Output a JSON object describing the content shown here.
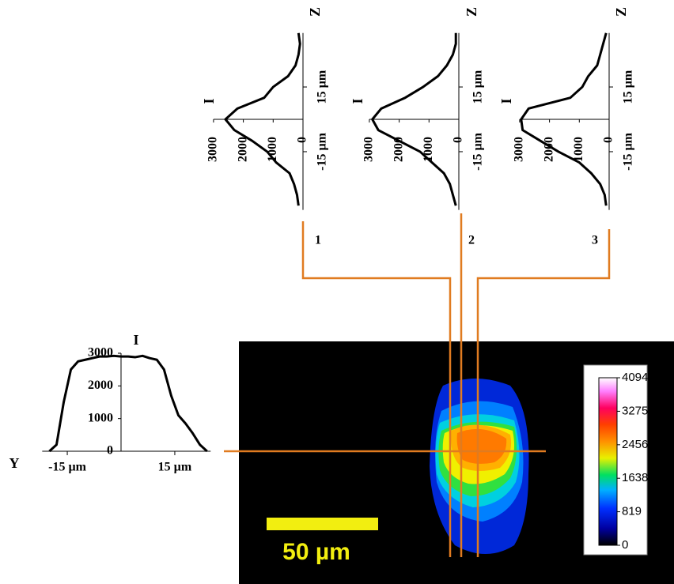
{
  "chart_data": [
    {
      "type": "line",
      "x_label": "Y",
      "y_label": "I",
      "x": [
        -20,
        -18,
        -16,
        -14,
        -12,
        -10,
        -8,
        -6,
        -4,
        -2,
        0,
        2,
        4,
        6,
        8,
        10,
        12,
        14,
        16,
        18,
        20,
        22,
        24
      ],
      "values": [
        0,
        200,
        1500,
        2500,
        2750,
        2800,
        2850,
        2900,
        2900,
        2920,
        2900,
        2900,
        2880,
        2920,
        2850,
        2800,
        2500,
        1700,
        1100,
        850,
        550,
        200,
        0
      ],
      "xlim": [
        -22,
        25
      ],
      "ylim": [
        0,
        3000
      ],
      "xticks": [
        {
          "value": -15,
          "label": "-15 µm"
        },
        {
          "value": 15,
          "label": "15 µm"
        }
      ],
      "yticks": [
        0,
        1000,
        2000,
        3000
      ]
    },
    {
      "type": "line",
      "orientation": "rotated",
      "panel": "1",
      "x_label": "Z",
      "y_label": "I",
      "x": [
        -40,
        -35,
        -30,
        -25,
        -20,
        -15,
        -10,
        -5,
        0,
        5,
        10,
        15,
        20,
        25,
        30,
        35,
        40
      ],
      "values": [
        150,
        200,
        300,
        450,
        900,
        1200,
        1700,
        2300,
        2600,
        2200,
        1300,
        1000,
        500,
        250,
        150,
        100,
        150
      ],
      "xlim": [
        -42,
        40
      ],
      "ylim": [
        0,
        3000
      ],
      "xticks": [
        {
          "value": -15,
          "label": "-15 µm"
        },
        {
          "value": 15,
          "label": "15 µm"
        }
      ],
      "yticks": [
        0,
        1000,
        2000,
        3000
      ]
    },
    {
      "type": "line",
      "orientation": "rotated",
      "panel": "2",
      "x_label": "Z",
      "y_label": "I",
      "x": [
        -40,
        -35,
        -30,
        -25,
        -20,
        -15,
        -10,
        -5,
        0,
        5,
        10,
        15,
        20,
        25,
        30,
        35,
        40
      ],
      "values": [
        100,
        200,
        300,
        500,
        900,
        1300,
        2000,
        2700,
        2900,
        2600,
        1800,
        1200,
        700,
        400,
        200,
        100,
        100
      ],
      "xlim": [
        -42,
        40
      ],
      "ylim": [
        0,
        3000
      ],
      "xticks": [
        {
          "value": -15,
          "label": "-15 µm"
        },
        {
          "value": 15,
          "label": "15 µm"
        }
      ],
      "yticks": [
        0,
        1000,
        2000,
        3000
      ]
    },
    {
      "type": "line",
      "orientation": "rotated",
      "panel": "3",
      "x_label": "Z",
      "y_label": "I",
      "x": [
        -40,
        -35,
        -30,
        -25,
        -20,
        -15,
        -10,
        -5,
        0,
        5,
        10,
        15,
        20,
        25,
        30,
        35,
        40
      ],
      "values": [
        100,
        150,
        300,
        600,
        1000,
        1700,
        2300,
        2900,
        2950,
        2700,
        1300,
        900,
        700,
        400,
        300,
        200,
        100
      ],
      "xlim": [
        -42,
        40
      ],
      "ylim": [
        0,
        3000
      ],
      "xticks": [
        {
          "value": -15,
          "label": "-15 µm"
        },
        {
          "value": 15,
          "label": "15 µm"
        }
      ],
      "yticks": [
        0,
        1000,
        2000,
        3000
      ]
    }
  ],
  "colorbar": {
    "lim": [
      0,
      4094
    ],
    "ticks": [
      4094,
      3275,
      2456,
      1638,
      819,
      0
    ]
  },
  "scale_bar": {
    "label": "50 µm"
  }
}
